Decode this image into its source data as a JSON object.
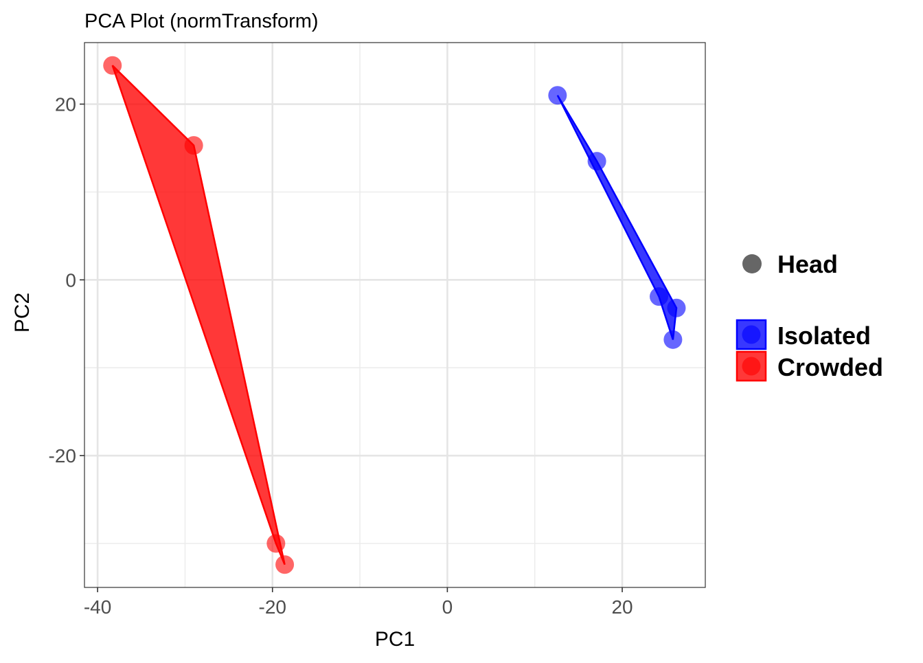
{
  "chart_data": {
    "type": "scatter",
    "title": "PCA Plot (normTransform)",
    "xlabel": "PC1",
    "ylabel": "PC2",
    "xlim": [
      -41.5,
      29.5
    ],
    "ylim": [
      -35.0,
      27.0
    ],
    "x_ticks": [
      -40,
      -20,
      0,
      20
    ],
    "x_tick_labels": [
      "-40",
      "-20",
      "0",
      "20"
    ],
    "y_ticks": [
      -20,
      0,
      20
    ],
    "y_tick_labels": [
      "-20",
      "0",
      "20"
    ],
    "grid": true,
    "legend_position": "right",
    "shape_legend": {
      "label": "Head",
      "color": "#666666"
    },
    "series": [
      {
        "name": "Isolated",
        "color": "#0000ff",
        "points": [
          {
            "x": 12.6,
            "y": 21.0
          },
          {
            "x": 17.1,
            "y": 13.5
          },
          {
            "x": 24.2,
            "y": -1.9
          },
          {
            "x": 26.2,
            "y": -3.2
          },
          {
            "x": 25.8,
            "y": -6.8
          }
        ],
        "hull": [
          0,
          1,
          3,
          4,
          2
        ]
      },
      {
        "name": "Crowded",
        "color": "#ff0000",
        "points": [
          {
            "x": -38.3,
            "y": 24.4
          },
          {
            "x": -29.0,
            "y": 15.3
          },
          {
            "x": -19.6,
            "y": -30.0
          },
          {
            "x": -18.6,
            "y": -32.4
          }
        ],
        "hull": [
          0,
          1,
          3,
          2
        ]
      }
    ]
  }
}
